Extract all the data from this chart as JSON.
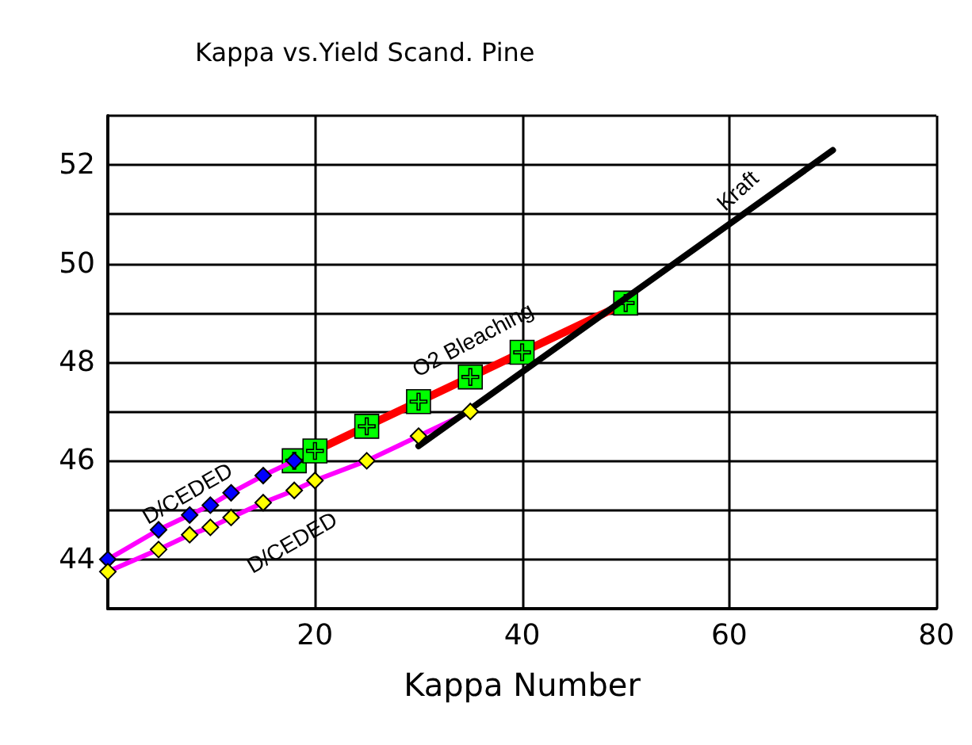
{
  "chart_data": {
    "type": "line",
    "title": "Kappa vs.Yield Scand. Pine",
    "xlabel": "Kappa Number",
    "xlim": [
      0,
      80
    ],
    "ylim": [
      43,
      53
    ],
    "xticks": [
      {
        "value": 0,
        "label": null
      },
      20,
      40,
      60,
      80
    ],
    "yticks": [
      {
        "value": 43,
        "label": null
      },
      44,
      {
        "value": 45,
        "label": null
      },
      46,
      {
        "value": 47,
        "label": null
      },
      48,
      {
        "value": 49,
        "label": null
      },
      50,
      {
        "value": 51,
        "label": null
      },
      52,
      {
        "value": 53,
        "label": null
      }
    ],
    "grid": true,
    "series": [
      {
        "color": "#ff0000",
        "marker": "square",
        "x": [
          18,
          20,
          25,
          30,
          35,
          40,
          50
        ],
        "values": [
          46.0,
          46.2,
          46.7,
          47.2,
          47.7,
          48.2,
          49.2
        ]
      },
      {
        "color": "#0000ff",
        "marker": "diamond",
        "x": [
          0,
          4.9,
          7.9,
          9.9,
          11.9,
          15,
          18
        ],
        "values": [
          44.0,
          44.6,
          44.9,
          45.1,
          45.35,
          45.7,
          46.0
        ]
      },
      {
        "color": "#ffff00",
        "marker": "diamond",
        "x": [
          0,
          4.9,
          7.9,
          9.9,
          11.9,
          15,
          18,
          20,
          25,
          30,
          35
        ],
        "values": [
          43.75,
          44.2,
          44.5,
          44.65,
          44.85,
          45.15,
          45.4,
          45.6,
          46.0,
          46.5,
          47.0
        ]
      },
      {
        "color": "#000000",
        "marker": "none",
        "x": [
          30,
          70
        ],
        "values": [
          46.3,
          52.3
        ]
      }
    ],
    "annotations": [
      "D/CEDED",
      "D/CEDED",
      "O2 Bleaching",
      "Kraft"
    ]
  }
}
